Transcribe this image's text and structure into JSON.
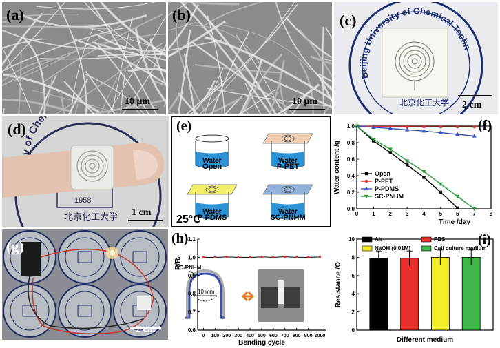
{
  "panels": {
    "a": {
      "label": "(a)",
      "scale": "10 μm"
    },
    "b": {
      "label": "(b)",
      "scale": "10 μm"
    },
    "c": {
      "label": "(c)",
      "scale": "2 cm",
      "seal_text": "Beijing University of Chemical Technology"
    },
    "d": {
      "label": "(d)",
      "scale": "1 cm",
      "seal_text": "rsity of Chemical",
      "year": "1958"
    },
    "e": {
      "label": "(e)",
      "temperature": "25°C",
      "water": "Water",
      "names": [
        "Open",
        "P-PET",
        "P-PDMS",
        "SC-PNHM"
      ]
    },
    "g": {
      "label": "(g)",
      "scale": "2 cm"
    },
    "h": {
      "label": "(h)",
      "inset_label": "SC-PNHM",
      "inset_dim": "10 mm"
    }
  },
  "colors": {
    "black": "#000000",
    "red": "#e8302a",
    "blue": "#3a4fb5",
    "green": "#2a9a3a",
    "yellow": "#f3ee2a",
    "bar_green": "#3fb64a"
  },
  "chart_data": [
    {
      "panel": "(f)",
      "type": "line",
      "xlabel": "Time /day",
      "ylabel": "Water content /g",
      "xlim": [
        0,
        8
      ],
      "ylim": [
        0.0,
        1.0
      ],
      "xticks": [
        "0",
        "1",
        "2",
        "3",
        "4",
        "5",
        "6",
        "7",
        "8"
      ],
      "yticks": [
        "0.0",
        "0.2",
        "0.4",
        "0.6",
        "0.8",
        "1.0"
      ],
      "legend": "bottom-left",
      "series": [
        {
          "name": "Open",
          "color": "#000000",
          "marker": "square",
          "x": [
            0,
            1,
            2,
            3,
            4,
            5,
            6
          ],
          "y": [
            1.0,
            0.82,
            0.68,
            0.53,
            0.38,
            0.2,
            0.01
          ]
        },
        {
          "name": "P-PET",
          "color": "#e8302a",
          "marker": "circle",
          "x": [
            0,
            1,
            2,
            3,
            4,
            5,
            6,
            7
          ],
          "y": [
            1.0,
            0.995,
            0.993,
            0.992,
            0.991,
            0.99,
            0.99,
            0.99
          ]
        },
        {
          "name": "P-PDMS",
          "color": "#3a4fb5",
          "marker": "triangle",
          "x": [
            0,
            1,
            2,
            3,
            4,
            5,
            6,
            7
          ],
          "y": [
            1.0,
            0.985,
            0.97,
            0.955,
            0.94,
            0.92,
            0.9,
            0.88
          ]
        },
        {
          "name": "SC-PNHM",
          "color": "#2a9a3a",
          "marker": "triangle-down",
          "x": [
            0,
            1,
            2,
            3,
            4,
            5,
            6,
            7
          ],
          "y": [
            1.0,
            0.84,
            0.72,
            0.58,
            0.45,
            0.3,
            0.15,
            0.0
          ]
        }
      ]
    },
    {
      "panel": "(h)",
      "type": "line",
      "xlabel": "Bending cycle",
      "ylabel": "R/R₀",
      "xlim": [
        -50,
        1050
      ],
      "ylim": [
        0.6,
        1.1
      ],
      "xticks": [
        "0",
        "100",
        "200",
        "300",
        "400",
        "500",
        "600",
        "700",
        "800",
        "900",
        "1000"
      ],
      "yticks": [
        "0.6",
        "0.7",
        "0.8",
        "0.9",
        "1.0",
        "1.1"
      ],
      "series": [
        {
          "name": "",
          "color": "#e8302a",
          "x": [
            0,
            100,
            200,
            300,
            400,
            500,
            600,
            700,
            800,
            900,
            1000
          ],
          "y": [
            1.0,
            1.0,
            1.002,
            1.0,
            1.0,
            1.002,
            1.0,
            1.003,
            1.0,
            1.0,
            1.002
          ]
        }
      ]
    },
    {
      "panel": "(i)",
      "type": "bar",
      "xlabel": "Different medium",
      "ylabel": "Resistance /Ω",
      "ylim": [
        0,
        10
      ],
      "yticks": [
        "0",
        "2",
        "4",
        "6",
        "8",
        "10"
      ],
      "legend": "top",
      "categories": [
        "Air",
        "PBS",
        "NaOH (0.01M)",
        "Cell culture medium"
      ],
      "values": [
        7.9,
        7.9,
        8.0,
        8.0
      ],
      "errors": [
        0.8,
        0.8,
        0.8,
        0.8
      ],
      "colors": [
        "#000000",
        "#e8302a",
        "#f3ee2a",
        "#3fb64a"
      ]
    }
  ]
}
